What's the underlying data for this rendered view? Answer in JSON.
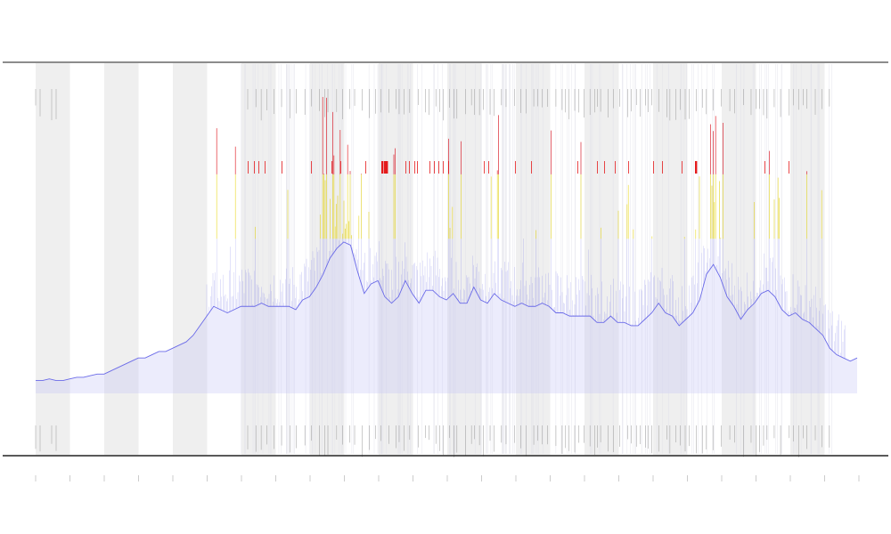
{
  "chart_data": {
    "type": "line",
    "title": "",
    "xlabel": "",
    "ylabel": "",
    "x_tick_count": 25,
    "shaded_bands": [
      [
        0,
        1
      ],
      [
        2,
        3
      ],
      [
        4,
        5
      ],
      [
        6,
        7
      ],
      [
        8,
        9
      ],
      [
        10,
        11
      ],
      [
        12,
        13
      ],
      [
        14,
        15
      ],
      [
        16,
        17
      ],
      [
        18,
        19
      ],
      [
        20,
        21
      ],
      [
        22,
        23
      ]
    ],
    "series": [
      {
        "values": [
          4,
          4,
          4.5,
          4,
          4,
          4.5,
          5,
          5,
          5.5,
          6,
          6,
          7,
          8,
          9,
          10,
          11,
          11,
          12,
          13,
          13,
          14,
          15,
          16,
          18,
          21,
          24,
          27,
          26,
          25,
          26,
          27,
          27,
          27,
          28,
          27,
          27,
          27,
          27,
          26,
          29,
          30,
          33,
          37,
          42,
          45,
          47,
          46,
          38,
          31,
          34,
          35,
          30,
          28,
          30,
          35,
          31,
          28,
          32,
          32,
          30,
          29,
          31,
          28,
          28,
          33,
          29,
          28,
          31,
          29,
          28,
          27,
          28,
          27,
          27,
          28,
          27,
          25,
          25,
          24,
          24,
          24,
          24,
          22,
          22,
          24,
          22,
          22,
          21,
          21,
          23,
          25,
          28,
          25,
          24,
          21,
          23,
          25,
          29,
          37,
          40,
          36,
          30,
          27,
          23,
          26,
          28,
          31,
          32,
          30,
          26,
          24,
          25,
          23,
          22,
          20,
          18,
          14,
          12,
          11,
          10,
          11
        ]
      }
    ],
    "x_range": [
      0,
      120
    ],
    "y_range": [
      0,
      100
    ],
    "red_threshold": 68,
    "yellow_threshold": 48,
    "colors": {
      "line": "#6a6ae8",
      "fill": "#c9c9f6",
      "high": "#e41a1c",
      "mid": "#f0e020",
      "band": "#efefef",
      "axis": "#555555"
    },
    "grid": false
  }
}
